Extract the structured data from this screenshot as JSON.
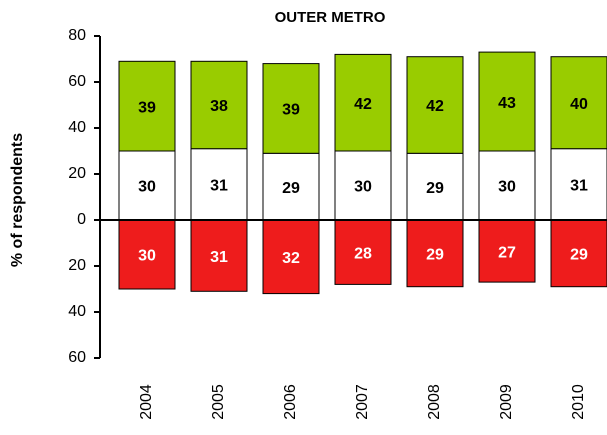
{
  "chart_data": {
    "type": "diverging_stacked_bar",
    "title": "OUTER METRO",
    "y_label": "% of respondents",
    "categories": [
      "2004",
      "2005",
      "2006",
      "2007",
      "2008",
      "2009",
      "2010"
    ],
    "series": [
      {
        "color": "#ffffff",
        "label_color": "#000000",
        "values": [
          30,
          31,
          29,
          30,
          29,
          30,
          31
        ]
      },
      {
        "color": "#99cc00",
        "label_color": "#000000",
        "values": [
          39,
          38,
          39,
          42,
          42,
          43,
          40
        ]
      },
      {
        "color": "#ee1c1c",
        "label_color": "#ffffff",
        "values": [
          -30,
          -31,
          -32,
          -28,
          -29,
          -27,
          -29
        ],
        "value_labels": [
          "30",
          "31",
          "32",
          "28",
          "29",
          "27",
          "29"
        ]
      }
    ],
    "ylim": [
      -60,
      80
    ],
    "yticks": [
      {
        "value": -60,
        "label": "60"
      },
      {
        "value": -40,
        "label": "40"
      },
      {
        "value": -20,
        "label": "20"
      },
      0,
      20,
      40,
      60,
      80
    ]
  }
}
